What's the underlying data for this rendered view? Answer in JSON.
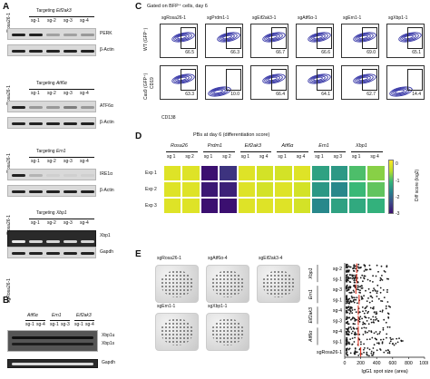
{
  "panels": {
    "A": "A",
    "B": "B",
    "C": "C",
    "D": "D",
    "E": "E"
  },
  "panelA": {
    "blots": [
      {
        "lane0": "sgRosa26-1",
        "target_prefix": "Targeting ",
        "target": "Eif2ak3",
        "lanes": [
          "sg-1",
          "sg-2",
          "sg-3",
          "sg-4"
        ],
        "labels": [
          "PERK",
          "β-Actin"
        ]
      },
      {
        "lane0": "sgRosa26-1",
        "target_prefix": "Targeting ",
        "target": "Atf6α",
        "lanes": [
          "sg-1",
          "sg-2",
          "sg-3",
          "sg-4"
        ],
        "labels": [
          "ATF6α",
          "β-Actin"
        ]
      },
      {
        "lane0": "sgRosa26-1",
        "target_prefix": "Targeting ",
        "target": "Ern1",
        "lanes": [
          "sg-1",
          "sg-2",
          "sg-3",
          "sg-4"
        ],
        "labels": [
          "IRE1α",
          "β-Actin"
        ]
      },
      {
        "lane0": "sgRosa26-1",
        "target_prefix": "Targeting ",
        "target": "Xbp1",
        "lanes": [
          "sg-1",
          "sg-2",
          "sg-3",
          "sg-4"
        ],
        "labels": [
          "Xbp1",
          "Gapdh"
        ]
      }
    ]
  },
  "panelB": {
    "lane0": "sgRosa26-1",
    "groups": [
      {
        "name": "Atf6α",
        "lanes": [
          "sg-1",
          "sg-4"
        ]
      },
      {
        "name": "Ern1",
        "lanes": [
          "sg-1",
          "sg-3"
        ]
      },
      {
        "name": "Eif2ak3",
        "lanes": [
          "sg-1",
          "sg-4"
        ]
      }
    ],
    "labels": [
      "Xbp1u",
      "Xbp1s",
      "Gapdh"
    ]
  },
  "panelC": {
    "title": "Gated on BFP⁺ cells, day 6",
    "columns": [
      "sgRosa26-1",
      "sgPrdm1-1",
      "sgEif2ak3-1",
      "sgAtf6α-1",
      "sgErn1-1",
      "sgXbp1-1"
    ],
    "row_labels": [
      "WT (GFP⁻)",
      "Cas9 (GFP⁺)"
    ],
    "y_axis": "CD19",
    "x_axis": "CD138",
    "wt_values": [
      "66.5",
      "66.3",
      "66.7",
      "66.6",
      "69.0",
      "65.1"
    ],
    "cas9_values": [
      "63.3",
      "10.0",
      "66.4",
      "64.1",
      "62.7",
      "14.4"
    ]
  },
  "panelD": {
    "title": "PBs at day 6 (differentiation score)",
    "groups": [
      "Rosa26",
      "Prdm1",
      "Eif2ak3",
      "Atf6α",
      "Ern1",
      "Xbp1"
    ],
    "columns": [
      "sg 1",
      "sg 2",
      "sg 1",
      "sg 2",
      "sg 1",
      "sg 4",
      "sg 1",
      "sg 4",
      "sg 1",
      "sg 3",
      "sg 1",
      "sg 4"
    ],
    "rows": [
      "Exp 1",
      "Exp 2",
      "Exp 3"
    ],
    "colorbar_title": "Diff score (log2)",
    "colorbar_ticks": [
      "0",
      "-1",
      "-2",
      "-3"
    ]
  },
  "chart_data": {
    "type": "heatmap",
    "title": "PBs at day 6 (differentiation score)",
    "x": [
      "Rosa26 sg 1",
      "Rosa26 sg 2",
      "Prdm1 sg 1",
      "Prdm1 sg 2",
      "Eif2ak3 sg 1",
      "Eif2ak3 sg 4",
      "Atf6α sg 1",
      "Atf6α sg 4",
      "Ern1 sg 1",
      "Ern1 sg 3",
      "Xbp1 sg 1",
      "Xbp1 sg 4"
    ],
    "y": [
      "Exp 1",
      "Exp 2",
      "Exp 3"
    ],
    "values": [
      [
        0.0,
        0.0,
        -3.0,
        -2.6,
        0.0,
        -0.1,
        -0.1,
        0.0,
        -1.3,
        -1.4,
        -0.9,
        -0.6
      ],
      [
        0.0,
        0.0,
        -2.9,
        -2.8,
        0.0,
        -0.1,
        0.0,
        -0.1,
        -1.4,
        -1.6,
        -1.0,
        -0.8
      ],
      [
        0.0,
        0.0,
        -3.0,
        -3.0,
        0.0,
        0.0,
        0.0,
        -0.1,
        -1.6,
        -1.3,
        -1.2,
        -1.1
      ]
    ],
    "zlim": [
      -3,
      0.3
    ],
    "colorscale": [
      "#3b0f70",
      "#3e4a89",
      "#26828e",
      "#35b779",
      "#b8de29",
      "#fde725"
    ],
    "colorbar_title": "Diff score (log2)",
    "secondary": {
      "type": "scatter",
      "categories": [
        "sg-2",
        "sg-1",
        "sg-3",
        "sg-1",
        "sg-4",
        "sg-3",
        "sg-4",
        "sg-1",
        "sgRosa26-1"
      ],
      "group_labels": [
        "Xbp1",
        "Ern1",
        "Eif2ak3",
        "Atf6α"
      ],
      "xlabel": "IgG1 spot size (area)",
      "xticks": [
        0,
        200,
        400,
        600,
        800,
        1000
      ],
      "xlim": [
        0,
        1000
      ],
      "medians": [
        150,
        150,
        140,
        180,
        170,
        170,
        170,
        170,
        200
      ]
    }
  },
  "panelE": {
    "wells": [
      "sgRosa26-1",
      "sgAtf6α-4",
      "sgEif2ak3-4",
      "sgErn1-1",
      "sgXbp1-1"
    ]
  },
  "colors": {
    "marker": "#e0301e",
    "contour": "#3a3aa8"
  }
}
